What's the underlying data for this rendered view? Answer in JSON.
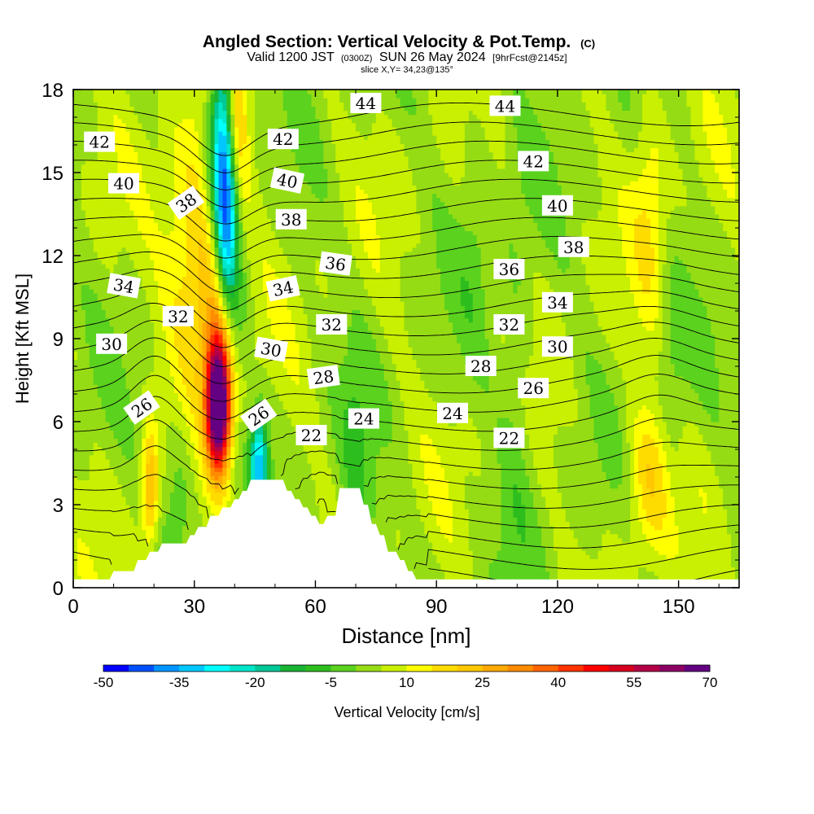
{
  "chart_data": {
    "type": "heatmap",
    "title": "Angled Section: Vertical Velocity & Pot.Temp.",
    "title_suffix": "(C)",
    "subtitle_parts": [
      "Valid 1200 JST",
      "(0300Z)",
      "SUN 26 May 2024",
      "[9hrFcst@2145z]"
    ],
    "subtitle2": "slice X,Y= 34,23@135°",
    "xlabel": "Distance [nm]",
    "ylabel": "Height [Kft MSL]",
    "xlim": [
      0,
      165
    ],
    "ylim": [
      0,
      18
    ],
    "xticks": [
      0,
      30,
      60,
      90,
      120,
      150
    ],
    "yticks": [
      0,
      3,
      6,
      9,
      12,
      15,
      18
    ],
    "colorbar": {
      "label": "Vertical Velocity [cm/s]",
      "range": [
        -50,
        70
      ],
      "tick_values": [
        -50,
        -35,
        -20,
        -5,
        10,
        25,
        40,
        55,
        70
      ],
      "tick_labels": [
        "-50",
        "-35",
        "-20",
        "-5",
        "10",
        "25",
        "40",
        "55",
        "70"
      ],
      "colors": [
        "#0000ff",
        "#0050ff",
        "#0095ff",
        "#00c8ff",
        "#00ffff",
        "#00e6c8",
        "#00c896",
        "#19b432",
        "#2dbe1e",
        "#5ad21e",
        "#96dc14",
        "#c8f000",
        "#ffff00",
        "#ffdc00",
        "#ffc800",
        "#ffaa00",
        "#ff8c00",
        "#ff6400",
        "#ff3200",
        "#ff0000",
        "#d7001e",
        "#b40046",
        "#8c0064",
        "#640082"
      ]
    },
    "terrain_profile": [
      [
        0,
        0.3
      ],
      [
        9,
        0.3
      ],
      [
        10,
        0.6
      ],
      [
        15,
        0.6
      ],
      [
        16,
        1
      ],
      [
        18,
        1
      ],
      [
        19,
        1.3
      ],
      [
        21,
        1.3
      ],
      [
        22,
        1.6
      ],
      [
        28,
        1.6
      ],
      [
        29,
        1.9
      ],
      [
        30,
        1.9
      ],
      [
        31,
        2.2
      ],
      [
        33,
        2.2
      ],
      [
        34,
        2.6
      ],
      [
        36,
        2.6
      ],
      [
        37,
        2.9
      ],
      [
        39,
        2.9
      ],
      [
        40,
        3.2
      ],
      [
        41,
        3.2
      ],
      [
        42,
        3.5
      ],
      [
        43,
        3.5
      ],
      [
        44,
        3.9
      ],
      [
        52,
        3.9
      ],
      [
        53,
        3.5
      ],
      [
        54,
        3.5
      ],
      [
        55,
        3.2
      ],
      [
        56,
        3.2
      ],
      [
        57,
        2.9
      ],
      [
        58,
        2.9
      ],
      [
        59,
        2.6
      ],
      [
        60,
        2.6
      ],
      [
        61,
        2.3
      ],
      [
        62,
        2.3
      ],
      [
        63,
        2.6
      ],
      [
        65,
        2.6
      ],
      [
        66,
        3.6
      ],
      [
        71,
        3.6
      ],
      [
        72,
        3.0
      ],
      [
        73,
        3.0
      ],
      [
        74,
        2.3
      ],
      [
        75,
        2.3
      ],
      [
        76,
        1.9
      ],
      [
        77,
        1.9
      ],
      [
        78,
        1.3
      ],
      [
        80,
        1.3
      ],
      [
        81,
        1.0
      ],
      [
        82,
        1.0
      ],
      [
        83,
        0.6
      ],
      [
        84,
        0.6
      ],
      [
        85,
        0.3
      ],
      [
        87,
        0.3
      ],
      [
        88,
        0.3
      ],
      [
        165,
        0.3
      ]
    ],
    "isentropes": {
      "levels": [
        20,
        21,
        22,
        23,
        24,
        25,
        26,
        27,
        28,
        29,
        30,
        31,
        32,
        33,
        34,
        35,
        36,
        37,
        38,
        39,
        40,
        41,
        42,
        43,
        44,
        45
      ],
      "labels": [
        {
          "text": "42",
          "x": 6.5,
          "y": 16.1,
          "angle": 0
        },
        {
          "text": "40",
          "x": 12.5,
          "y": 14.6,
          "angle": 0
        },
        {
          "text": "38",
          "x": 28,
          "y": 13.9,
          "angle": -35
        },
        {
          "text": "34",
          "x": 12.5,
          "y": 10.9,
          "angle": 10
        },
        {
          "text": "32",
          "x": 26,
          "y": 9.8,
          "angle": 0
        },
        {
          "text": "30",
          "x": 9.5,
          "y": 8.8,
          "angle": 0
        },
        {
          "text": "26",
          "x": 17,
          "y": 6.5,
          "angle": -35
        },
        {
          "text": "42",
          "x": 52,
          "y": 16.2,
          "angle": 0
        },
        {
          "text": "40",
          "x": 53,
          "y": 14.7,
          "angle": 12
        },
        {
          "text": "38",
          "x": 54,
          "y": 13.3,
          "angle": 0
        },
        {
          "text": "36",
          "x": 65,
          "y": 11.7,
          "angle": 8
        },
        {
          "text": "34",
          "x": 52,
          "y": 10.8,
          "angle": -12
        },
        {
          "text": "32",
          "x": 64,
          "y": 9.5,
          "angle": 0
        },
        {
          "text": "30",
          "x": 49,
          "y": 8.6,
          "angle": 10
        },
        {
          "text": "28",
          "x": 62,
          "y": 7.6,
          "angle": -8
        },
        {
          "text": "26",
          "x": 46,
          "y": 6.2,
          "angle": -35
        },
        {
          "text": "22",
          "x": 59,
          "y": 5.5,
          "angle": 0
        },
        {
          "text": "24",
          "x": 72,
          "y": 6.1,
          "angle": 0
        },
        {
          "text": "44",
          "x": 72.5,
          "y": 17.5,
          "angle": 0
        },
        {
          "text": "44",
          "x": 107,
          "y": 17.4,
          "angle": 0
        },
        {
          "text": "42",
          "x": 114,
          "y": 15.4,
          "angle": 0
        },
        {
          "text": "40",
          "x": 120,
          "y": 13.8,
          "angle": 0
        },
        {
          "text": "38",
          "x": 124,
          "y": 12.3,
          "angle": 0
        },
        {
          "text": "36",
          "x": 108,
          "y": 11.5,
          "angle": 0
        },
        {
          "text": "34",
          "x": 120,
          "y": 10.3,
          "angle": 0
        },
        {
          "text": "32",
          "x": 108,
          "y": 9.5,
          "angle": 0
        },
        {
          "text": "30",
          "x": 120,
          "y": 8.7,
          "angle": 0
        },
        {
          "text": "28",
          "x": 101,
          "y": 8.0,
          "angle": 0
        },
        {
          "text": "26",
          "x": 114,
          "y": 7.2,
          "angle": 0
        },
        {
          "text": "24",
          "x": 94,
          "y": 6.3,
          "angle": 0
        },
        {
          "text": "22",
          "x": 108,
          "y": 5.4,
          "angle": 0
        }
      ]
    },
    "field_features": [
      {
        "kind": "updraft",
        "x": 36,
        "z": 6.5,
        "sx": 2,
        "sz": 1.6,
        "value": 68
      },
      {
        "kind": "updraft",
        "x": 37,
        "z": 8.5,
        "sx": 2.8,
        "sz": 2.2,
        "value": 30
      },
      {
        "kind": "updraft",
        "x": 32,
        "z": 12,
        "sx": 6,
        "sz": 3.5,
        "value": 22
      },
      {
        "kind": "updraft",
        "x": 40,
        "z": 17,
        "sx": 2,
        "sz": 2,
        "value": 25
      },
      {
        "kind": "updraft",
        "x": 19,
        "z": 3.5,
        "sx": 1.5,
        "sz": 1.5,
        "value": 22
      },
      {
        "kind": "updraft",
        "x": 143,
        "z": 4,
        "sx": 4,
        "sz": 2,
        "value": 16
      },
      {
        "kind": "updraft",
        "x": 143,
        "z": 14,
        "sx": 3,
        "sz": 3.5,
        "value": 10
      },
      {
        "kind": "downdraft",
        "x": 38,
        "z": 13.5,
        "sx": 2,
        "sz": 3.8,
        "value": -48
      },
      {
        "kind": "downdraft",
        "x": 36,
        "z": 16,
        "sx": 2.5,
        "sz": 2.5,
        "value": -25
      },
      {
        "kind": "downdraft",
        "x": 46,
        "z": 4.5,
        "sx": 1.5,
        "sz": 1.3,
        "value": -35
      },
      {
        "kind": "downdraft",
        "x": 41,
        "z": 9.5,
        "sx": 2,
        "sz": 2,
        "value": -12
      },
      {
        "kind": "downdraft",
        "x": 26,
        "z": 3.5,
        "sx": 3,
        "sz": 2,
        "value": -10
      },
      {
        "kind": "downdraft",
        "x": 70,
        "z": 4,
        "sx": 3,
        "sz": 3,
        "value": -8
      },
      {
        "kind": "downdraft",
        "x": 110,
        "z": 8,
        "sx": 3,
        "sz": 5,
        "value": -6
      },
      {
        "kind": "downdraft",
        "x": 148,
        "z": 7,
        "sx": 3,
        "sz": 3,
        "value": -7
      },
      {
        "kind": "downdraft",
        "x": 100,
        "z": 14,
        "sx": 3,
        "sz": 4,
        "value": -5
      }
    ]
  }
}
